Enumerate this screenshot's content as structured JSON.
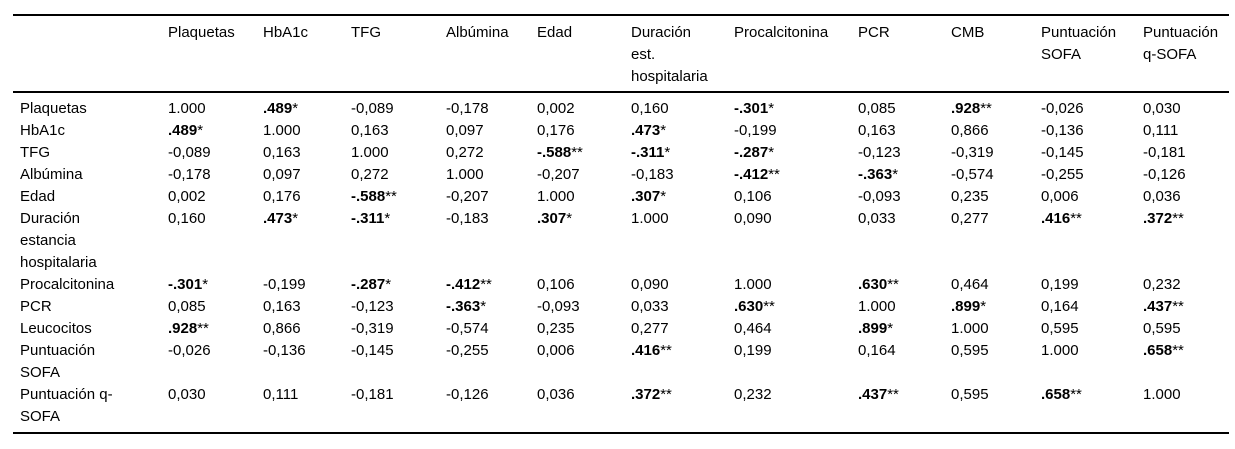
{
  "page": {
    "kind": "correlation-matrix-table",
    "background_color": "#ffffff",
    "text_color": "#000000",
    "rule_color": "#000000"
  },
  "table": {
    "corner_label": "",
    "columns": [
      "Plaquetas",
      "HbA1c",
      "TFG",
      "Albúmina",
      "Edad",
      "Duración est. hospitalaria",
      "Procalcitonina",
      "PCR",
      "CMB",
      "Puntuación SOFA",
      "Puntuación q-SOFA"
    ],
    "rows": [
      {
        "label": "Plaquetas",
        "cells": [
          "1.000",
          {
            "v": ".489",
            "sig": "*",
            "bold": true
          },
          "-0,089",
          "-0,178",
          "0,002",
          "0,160",
          {
            "v": "-.301",
            "sig": "*",
            "bold": true
          },
          "0,085",
          {
            "v": ".928",
            "sig": "**",
            "bold": true
          },
          "-0,026",
          "0,030"
        ]
      },
      {
        "label": "HbA1c",
        "cells": [
          {
            "v": ".489",
            "sig": "*",
            "bold": true
          },
          "1.000",
          "0,163",
          "0,097",
          "0,176",
          {
            "v": ".473",
            "sig": "*",
            "bold": true
          },
          "-0,199",
          "0,163",
          "0,866",
          "-0,136",
          "0,111"
        ]
      },
      {
        "label": "TFG",
        "cells": [
          "-0,089",
          "0,163",
          "1.000",
          "0,272",
          {
            "v": "-.588",
            "sig": "**",
            "bold": true
          },
          {
            "v": "-.311",
            "sig": "*",
            "bold": true
          },
          {
            "v": "-.287",
            "sig": "*",
            "bold": true
          },
          "-0,123",
          "-0,319",
          "-0,145",
          "-0,181"
        ]
      },
      {
        "label": "Albúmina",
        "cells": [
          "-0,178",
          "0,097",
          "0,272",
          "1.000",
          "-0,207",
          "-0,183",
          {
            "v": "-.412",
            "sig": "**",
            "bold": true
          },
          {
            "v": "-.363",
            "sig": "*",
            "bold": true
          },
          "-0,574",
          "-0,255",
          "-0,126"
        ]
      },
      {
        "label": "Edad",
        "cells": [
          "0,002",
          "0,176",
          {
            "v": "-.588",
            "sig": "**",
            "bold": true
          },
          "-0,207",
          "1.000",
          {
            "v": ".307",
            "sig": "*",
            "bold": true
          },
          "0,106",
          "-0,093",
          "0,235",
          "0,006",
          "0,036"
        ]
      },
      {
        "label": "Duración estancia hospitalaria",
        "cells": [
          "0,160",
          {
            "v": ".473",
            "sig": "*",
            "bold": true
          },
          {
            "v": "-.311",
            "sig": "*",
            "bold": true
          },
          "-0,183",
          {
            "v": ".307",
            "sig": "*",
            "bold": true
          },
          "1.000",
          "0,090",
          "0,033",
          "0,277",
          {
            "v": ".416",
            "sig": "**",
            "bold": true
          },
          {
            "v": ".372",
            "sig": "**",
            "bold": true
          }
        ]
      },
      {
        "label": "Procalcitonina",
        "cells": [
          {
            "v": "-.301",
            "sig": "*",
            "bold": true
          },
          "-0,199",
          {
            "v": "-.287",
            "sig": "*",
            "bold": true
          },
          {
            "v": "-.412",
            "sig": "**",
            "bold": true
          },
          "0,106",
          "0,090",
          "1.000",
          {
            "v": ".630",
            "sig": "**",
            "bold": true
          },
          "0,464",
          "0,199",
          "0,232"
        ]
      },
      {
        "label": "PCR",
        "cells": [
          "0,085",
          "0,163",
          "-0,123",
          {
            "v": "-.363",
            "sig": "*",
            "bold": true
          },
          "-0,093",
          "0,033",
          {
            "v": ".630",
            "sig": "**",
            "bold": true
          },
          "1.000",
          {
            "v": ".899",
            "sig": "*",
            "bold": true
          },
          "0,164",
          {
            "v": ".437",
            "sig": "**",
            "bold": true
          }
        ]
      },
      {
        "label": "Leucocitos",
        "cells": [
          {
            "v": ".928",
            "sig": "**",
            "bold": true
          },
          "0,866",
          "-0,319",
          "-0,574",
          "0,235",
          "0,277",
          "0,464",
          {
            "v": ".899",
            "sig": "*",
            "bold": true
          },
          "1.000",
          "0,595",
          "0,595"
        ]
      },
      {
        "label": "Puntuación SOFA",
        "cells": [
          "-0,026",
          "-0,136",
          "-0,145",
          "-0,255",
          "0,006",
          {
            "v": ".416",
            "sig": "**",
            "bold": true
          },
          "0,199",
          "0,164",
          "0,595",
          "1.000",
          {
            "v": ".658",
            "sig": "**",
            "bold": true
          }
        ]
      },
      {
        "label": "Puntuación q-SOFA",
        "cells": [
          "0,030",
          "0,111",
          "-0,181",
          "-0,126",
          "0,036",
          {
            "v": ".372",
            "sig": "**",
            "bold": true
          },
          "0,232",
          {
            "v": ".437",
            "sig": "**",
            "bold": true
          },
          "0,595",
          {
            "v": ".658",
            "sig": "**",
            "bold": true
          },
          "1.000"
        ]
      }
    ]
  }
}
